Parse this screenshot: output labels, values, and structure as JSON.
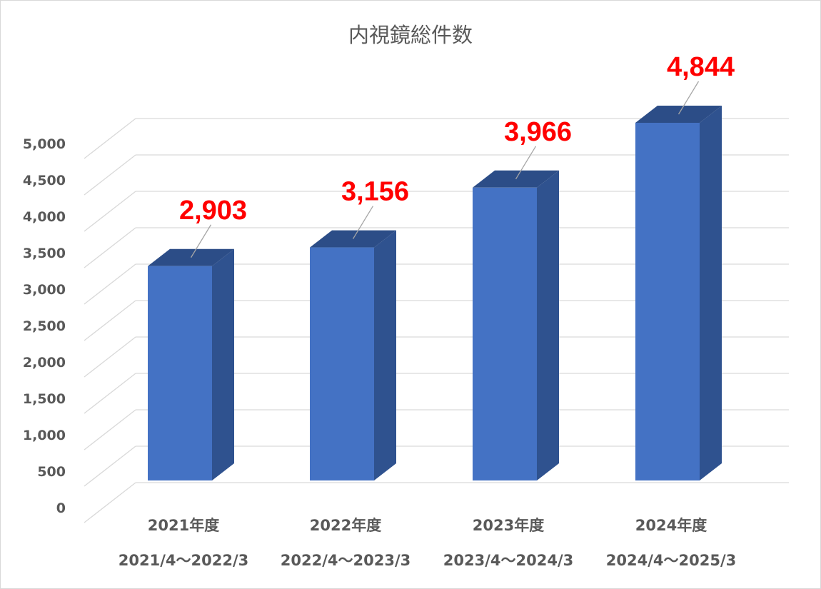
{
  "chart_data": {
    "type": "bar",
    "title": "内視鏡総件数",
    "categories": [
      "2021年度",
      "2022年度",
      "2023年度",
      "2024年度"
    ],
    "category_periods": [
      "2021/4～2022/3",
      "2022/4～2023/3",
      "2023/4～2024/3",
      "2024/4～2025/3"
    ],
    "values": [
      2903,
      3156,
      3966,
      4844
    ],
    "data_labels": [
      "2,903",
      "3,156",
      "3,966",
      "4,844"
    ],
    "ylim": [
      0,
      5000
    ],
    "yticks": [
      0,
      500,
      1000,
      1500,
      2000,
      2500,
      3000,
      3500,
      4000,
      4500,
      5000
    ],
    "ytick_labels": [
      "0",
      "500",
      "1,000",
      "1,500",
      "2,000",
      "2,500",
      "3,000",
      "3,500",
      "4,000",
      "4,500",
      "5,000"
    ],
    "grid": true,
    "style": "3d-bar",
    "bar_color": "#4472c4",
    "bar_side_color": "#2f528f",
    "bar_top_color": "#2c4d87",
    "label_color": "#ff0000",
    "grid_color": "#d9d9d9"
  }
}
